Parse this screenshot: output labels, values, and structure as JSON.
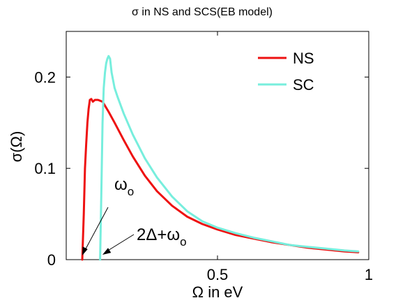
{
  "chart_data": {
    "type": "line",
    "title": "σ in NS and SCS(EB model)",
    "xlabel": "Ω in eV",
    "ylabel": "σ(Ω)",
    "xlim": [
      0.0,
      1.0
    ],
    "ylim": [
      0.0,
      0.25
    ],
    "x_ticks": [
      0.5,
      1.0
    ],
    "x_tick_labels": [
      "0.5",
      "1"
    ],
    "y_ticks": [
      0.0,
      0.1,
      0.2
    ],
    "y_tick_labels": [
      "0",
      "0.1",
      "0.2"
    ],
    "grid": false,
    "legend_position": "top-right",
    "series": [
      {
        "name": "NS",
        "color": "#ee1111",
        "x": [
          0.053,
          0.058,
          0.062,
          0.066,
          0.07,
          0.074,
          0.078,
          0.083,
          0.088,
          0.095,
          0.105,
          0.12,
          0.14,
          0.16,
          0.19,
          0.22,
          0.26,
          0.3,
          0.35,
          0.4,
          0.45,
          0.5,
          0.56,
          0.62,
          0.68,
          0.74,
          0.8,
          0.86,
          0.92,
          0.965
        ],
        "y": [
          0.0,
          0.05,
          0.1,
          0.126,
          0.15,
          0.165,
          0.175,
          0.176,
          0.173,
          0.175,
          0.175,
          0.173,
          0.162,
          0.15,
          0.131,
          0.113,
          0.092,
          0.075,
          0.059,
          0.047,
          0.039,
          0.033,
          0.027,
          0.023,
          0.019,
          0.016,
          0.013,
          0.011,
          0.009,
          0.008
        ]
      },
      {
        "name": "SC",
        "color": "#77eedd",
        "x": [
          0.112,
          0.116,
          0.12,
          0.124,
          0.128,
          0.132,
          0.136,
          0.14,
          0.145,
          0.15,
          0.16,
          0.17,
          0.19,
          0.22,
          0.26,
          0.3,
          0.35,
          0.4,
          0.45,
          0.5,
          0.56,
          0.62,
          0.68,
          0.74,
          0.8,
          0.86,
          0.92,
          0.965
        ],
        "y": [
          0.0,
          0.07,
          0.15,
          0.188,
          0.205,
          0.215,
          0.22,
          0.223,
          0.22,
          0.205,
          0.188,
          0.178,
          0.16,
          0.137,
          0.111,
          0.09,
          0.069,
          0.053,
          0.042,
          0.035,
          0.029,
          0.024,
          0.02,
          0.016,
          0.014,
          0.012,
          0.01,
          0.009
        ]
      }
    ],
    "annotations": [
      {
        "label": "ω",
        "subscript": "o",
        "target_x": 0.06,
        "target_y": 0.003
      },
      {
        "label": "2Δ+ω",
        "subscript": "o",
        "target_x": 0.118,
        "target_y": 0.003
      }
    ]
  }
}
